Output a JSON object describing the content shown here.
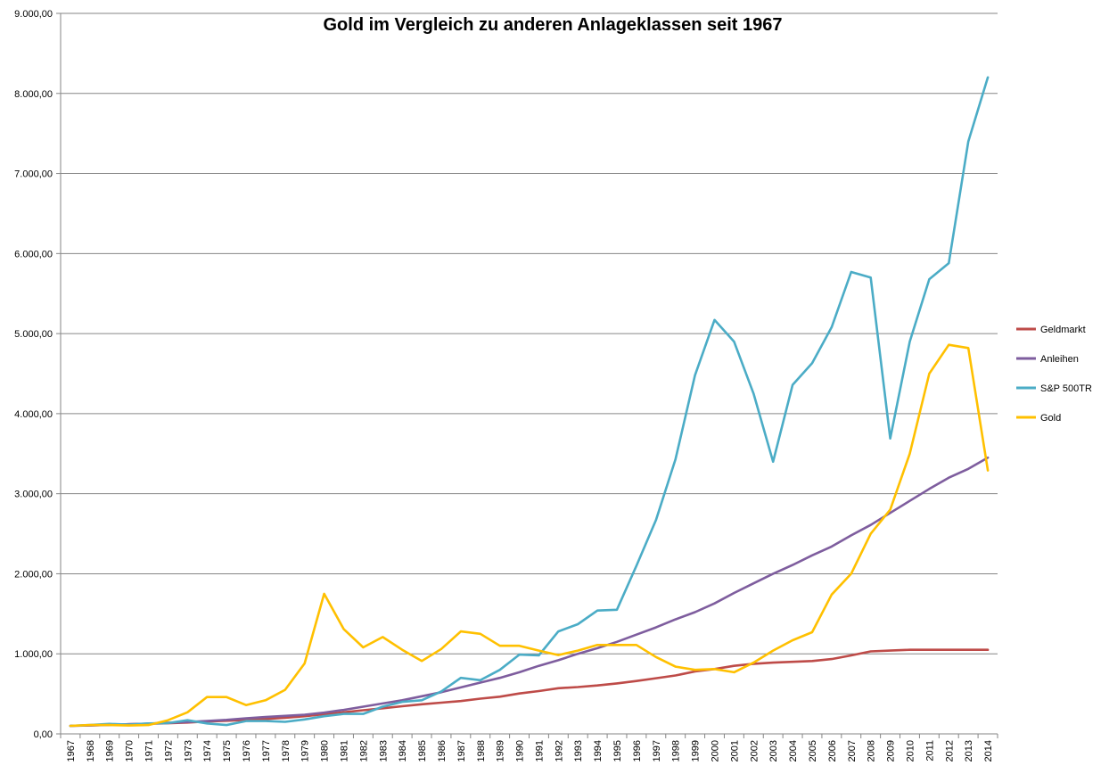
{
  "chart_data": {
    "type": "line",
    "title": "Gold im Vergleich zu anderen Anlageklassen seit 1967",
    "xlabel": "",
    "ylabel": "",
    "ylim": [
      0,
      9000
    ],
    "y_ticks": [
      "0,00",
      "1.000,00",
      "2.000,00",
      "3.000,00",
      "4.000,00",
      "5.000,00",
      "6.000,00",
      "7.000,00",
      "8.000,00",
      "9.000,00"
    ],
    "y_tick_values": [
      0,
      1000,
      2000,
      3000,
      4000,
      5000,
      6000,
      7000,
      8000,
      9000
    ],
    "categories": [
      "1967",
      "1968",
      "1969",
      "1970",
      "1971",
      "1972",
      "1973",
      "1974",
      "1975",
      "1976",
      "1977",
      "1978",
      "1979",
      "1980",
      "1981",
      "1982",
      "1983",
      "1984",
      "1985",
      "1986",
      "1987",
      "1988",
      "1989",
      "1990",
      "1991",
      "1992",
      "1993",
      "1994",
      "1995",
      "1996",
      "1997",
      "1998",
      "1999",
      "2000",
      "2001",
      "2002",
      "2003",
      "2004",
      "2005",
      "2006",
      "2007",
      "2008",
      "2009",
      "2010",
      "2011",
      "2012",
      "2013",
      "2014"
    ],
    "grid": true,
    "legend_position": "right",
    "series": [
      {
        "name": "Geldmarkt",
        "color": "#be4b48",
        "values": [
          100,
          105,
          112,
          120,
          126,
          132,
          142,
          155,
          164,
          174,
          186,
          200,
          220,
          245,
          270,
          295,
          320,
          345,
          370,
          390,
          410,
          440,
          465,
          505,
          535,
          570,
          585,
          605,
          630,
          660,
          695,
          730,
          780,
          810,
          850,
          875,
          890,
          900,
          910,
          935,
          980,
          1030,
          1040,
          1050,
          1050,
          1050,
          1050,
          1050
        ]
      },
      {
        "name": "Anleihen",
        "color": "#7e5d9e",
        "values": [
          100,
          106,
          112,
          120,
          128,
          138,
          148,
          160,
          175,
          195,
          210,
          225,
          240,
          265,
          300,
          340,
          380,
          420,
          470,
          520,
          580,
          640,
          700,
          770,
          850,
          920,
          1000,
          1070,
          1150,
          1240,
          1330,
          1430,
          1520,
          1630,
          1760,
          1880,
          2000,
          2110,
          2230,
          2340,
          2480,
          2610,
          2760,
          2910,
          3060,
          3200,
          3310,
          3450
        ]
      },
      {
        "name": "S&P 500TR",
        "color": "#4bacc6",
        "values": [
          100,
          110,
          125,
          115,
          130,
          135,
          170,
          130,
          110,
          160,
          160,
          150,
          180,
          220,
          250,
          250,
          340,
          400,
          420,
          530,
          700,
          670,
          800,
          990,
          980,
          1280,
          1370,
          1540,
          1550,
          2100,
          2670,
          3430,
          4480,
          5170,
          4900,
          4250,
          3400,
          4360,
          4630,
          5080,
          5770,
          5700,
          3690,
          4900,
          5680,
          5880,
          7400,
          8200
        ]
      },
      {
        "name": "Gold",
        "color": "#ffc000",
        "values": [
          100,
          110,
          110,
          105,
          110,
          170,
          270,
          460,
          460,
          360,
          420,
          550,
          880,
          1750,
          1310,
          1080,
          1210,
          1050,
          910,
          1060,
          1280,
          1250,
          1100,
          1100,
          1040,
          985,
          1040,
          1110,
          1110,
          1110,
          960,
          840,
          800,
          810,
          770,
          890,
          1040,
          1170,
          1270,
          1740,
          2000,
          2500,
          2800,
          3500,
          4500,
          4860,
          4820,
          3290
        ]
      }
    ]
  }
}
